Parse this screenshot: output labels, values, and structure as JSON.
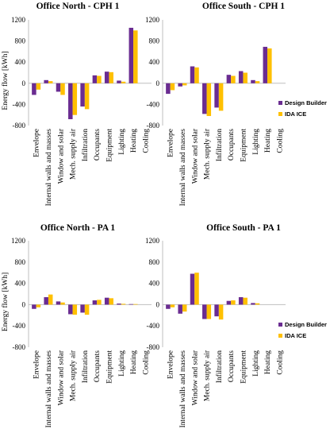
{
  "chart_data": [
    {
      "type": "bar",
      "title": "Office North - CPH 1",
      "ylabel": "Energy flow [kWh]",
      "ylim": [
        -800,
        1200
      ],
      "yticks": [
        -800,
        -400,
        0,
        400,
        800,
        1200
      ],
      "grid": false,
      "categories": [
        "Envelope",
        "Internal walls and masses",
        "Window and solar",
        "Mech. supply air",
        "Infiltration",
        "Occupants",
        "Equipment",
        "Lighting",
        "Heating",
        "Cooling"
      ],
      "series": [
        {
          "name": "Design Builder",
          "values": [
            -220,
            60,
            -160,
            -680,
            -440,
            150,
            220,
            50,
            1050,
            0
          ]
        },
        {
          "name": "IDA ICE",
          "values": [
            -120,
            40,
            -220,
            -600,
            -490,
            140,
            210,
            30,
            1000,
            0
          ]
        }
      ]
    },
    {
      "type": "bar",
      "title": "Office South - CPH 1",
      "ylim": [
        -800,
        1200
      ],
      "yticks": [
        -800,
        -400,
        0,
        400,
        800,
        1200
      ],
      "grid": false,
      "categories": [
        "Envelope",
        "Internal walls and masses",
        "Window and solar",
        "Mech. supply air",
        "Infiltration",
        "Occupants",
        "Equipment",
        "Lighting",
        "Heating",
        "Cooling"
      ],
      "series": [
        {
          "name": "Design Builder",
          "values": [
            -200,
            -60,
            320,
            -580,
            -460,
            160,
            230,
            60,
            690,
            0
          ]
        },
        {
          "name": "IDA ICE",
          "values": [
            -130,
            -40,
            300,
            -620,
            -520,
            140,
            200,
            40,
            660,
            0
          ]
        }
      ]
    },
    {
      "type": "bar",
      "title": "Office North - PA 1",
      "ylabel": "Energy flow [kWh]",
      "ylim": [
        -800,
        1200
      ],
      "yticks": [
        -800,
        -400,
        0,
        400,
        800,
        1200
      ],
      "grid": false,
      "categories": [
        "Envelope",
        "Internal walls and masses",
        "Window and solar",
        "Mech. supply air",
        "Infiltration",
        "Occupants",
        "Equipment",
        "Lighting",
        "Heating",
        "Cooling"
      ],
      "series": [
        {
          "name": "Design Builder",
          "values": [
            -80,
            140,
            60,
            -180,
            -150,
            80,
            130,
            20,
            10,
            0
          ]
        },
        {
          "name": "IDA ICE",
          "values": [
            -50,
            190,
            40,
            -190,
            -190,
            90,
            120,
            15,
            10,
            0
          ]
        }
      ]
    },
    {
      "type": "bar",
      "title": "Office South - PA 1",
      "ylim": [
        -800,
        1200
      ],
      "yticks": [
        -800,
        -400,
        0,
        400,
        800,
        1200
      ],
      "grid": false,
      "categories": [
        "Envelope",
        "Internal walls and masses",
        "Window and solar",
        "Mech. supply air",
        "Infiltration",
        "Occupants",
        "Equipment",
        "Lighting",
        "Heating",
        "Cooling"
      ],
      "series": [
        {
          "name": "Design Builder",
          "values": [
            -80,
            -170,
            580,
            -270,
            -220,
            70,
            140,
            30,
            0,
            0
          ]
        },
        {
          "name": "IDA ICE",
          "values": [
            -50,
            -130,
            600,
            -270,
            -280,
            80,
            130,
            25,
            0,
            0
          ]
        }
      ]
    }
  ],
  "colors": {
    "Design Builder": "#6a2c91",
    "IDA ICE": "#ffc000",
    "axis": "#bfbfbf"
  },
  "legend": {
    "position": "right",
    "items": [
      "Design Builder",
      "IDA ICE"
    ]
  }
}
